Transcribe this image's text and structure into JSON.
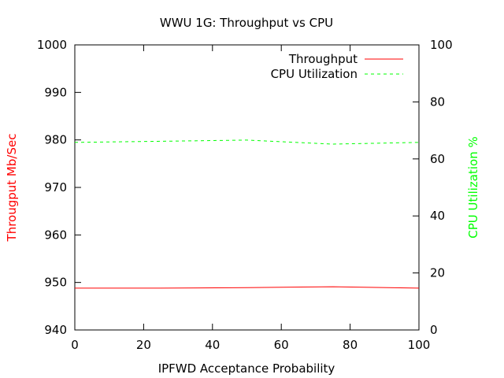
{
  "chart_data": {
    "type": "line",
    "title": "WWU 1G: Throughput vs CPU",
    "xlabel": "IPFWD Acceptance Probability",
    "ylabel": "Througput Mb/Sec",
    "y2label": "CPU Utilization %",
    "xlim": [
      0,
      100
    ],
    "ylim": [
      940,
      1000
    ],
    "y2lim": [
      0,
      100
    ],
    "xticks": [
      "0",
      "20",
      "40",
      "60",
      "80",
      "100"
    ],
    "yticks": [
      "940",
      "950",
      "960",
      "970",
      "980",
      "990",
      "1000"
    ],
    "y2ticks": [
      "0",
      "20",
      "40",
      "60",
      "80",
      "100"
    ],
    "x": [
      0,
      25,
      50,
      75,
      100
    ],
    "legend_position": "top-right",
    "grid": false,
    "series": [
      {
        "name": "Throughput",
        "axis": "left",
        "values": [
          948.8,
          948.8,
          948.9,
          949.1,
          948.8
        ],
        "color": "#ff0000",
        "dash": "solid"
      },
      {
        "name": "CPU Utilization",
        "axis": "right",
        "values": [
          65.8,
          66.2,
          66.6,
          65.2,
          65.8
        ],
        "color": "#00ff00",
        "dash": "dashed"
      }
    ],
    "colors": {
      "ylabel": "#ff0000",
      "y2label": "#00ff00"
    }
  }
}
